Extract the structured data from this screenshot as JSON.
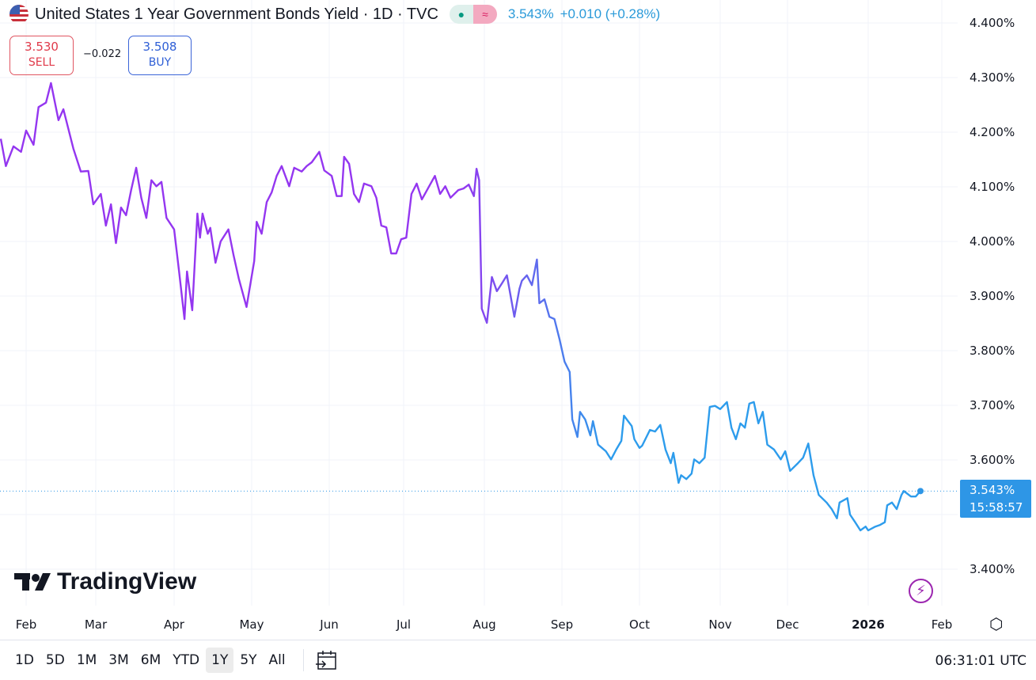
{
  "header": {
    "title": "United States 1 Year Government Bonds Yield · 1D · TVC",
    "status_market": "●",
    "status_delayed": "≈",
    "last": "3.543%",
    "change": "+0.010 (+0.28%)"
  },
  "trade": {
    "sell_price": "3.530",
    "sell_label": "SELL",
    "spread": "−0.022",
    "buy_price": "3.508",
    "buy_label": "BUY"
  },
  "price_tag": {
    "value": "3.543%",
    "countdown": "15:58:57"
  },
  "logo": "TradingView",
  "bottom": {
    "ranges": [
      "1D",
      "5D",
      "1M",
      "3M",
      "6M",
      "YTD",
      "1Y",
      "5Y",
      "All"
    ],
    "selected": "1Y",
    "clock": "06:31:01 UTC"
  },
  "colors": {
    "line_start": "#9436f0",
    "line_end": "#2d9cec",
    "accent": "#2e96e6"
  },
  "icons": [
    "us-flag-icon",
    "market-open-icon",
    "delayed-data-icon",
    "calendar-goto-icon",
    "settings-icon",
    "lightning-icon"
  ],
  "chart_data": {
    "type": "line",
    "title": "United States 1 Year Government Bonds Yield",
    "ylim": [
      3.4,
      4.4
    ],
    "grid": true,
    "y_ticks": [
      "4.400%",
      "4.300%",
      "4.200%",
      "4.100%",
      "4.000%",
      "3.900%",
      "3.800%",
      "3.700%",
      "3.600%",
      "3.400%"
    ],
    "y_tick_values": [
      4.4,
      4.3,
      4.2,
      4.1,
      4.0,
      3.9,
      3.8,
      3.7,
      3.6,
      3.4
    ],
    "x_ticks": [
      "Feb",
      "Mar",
      "Apr",
      "May",
      "Jun",
      "Jul",
      "Aug",
      "Sep",
      "Oct",
      "Nov",
      "Dec",
      "2026",
      "Feb"
    ],
    "x_tick_dates": [
      "2025-02-01",
      "2025-03-01",
      "2025-04-01",
      "2025-05-01",
      "2025-06-01",
      "2025-07-01",
      "2025-08-01",
      "2025-09-01",
      "2025-10-01",
      "2025-11-01",
      "2025-12-01",
      "2026-01-01",
      "2026-02-01"
    ],
    "last_value": 3.543,
    "points": [
      [
        "2025-01-22",
        4.188
      ],
      [
        "2025-01-24",
        4.138
      ],
      [
        "2025-01-27",
        4.174
      ],
      [
        "2025-01-30",
        4.164
      ],
      [
        "2025-02-01",
        4.203
      ],
      [
        "2025-02-04",
        4.177
      ],
      [
        "2025-02-06",
        4.246
      ],
      [
        "2025-02-09",
        4.254
      ],
      [
        "2025-02-11",
        4.29
      ],
      [
        "2025-02-14",
        4.222
      ],
      [
        "2025-02-16",
        4.242
      ],
      [
        "2025-02-20",
        4.17
      ],
      [
        "2025-02-23",
        4.128
      ],
      [
        "2025-02-26",
        4.129
      ],
      [
        "2025-02-28",
        4.068
      ],
      [
        "2025-03-03",
        4.087
      ],
      [
        "2025-03-05",
        4.029
      ],
      [
        "2025-03-07",
        4.068
      ],
      [
        "2025-03-09",
        3.997
      ],
      [
        "2025-03-11",
        4.062
      ],
      [
        "2025-03-13",
        4.048
      ],
      [
        "2025-03-15",
        4.094
      ],
      [
        "2025-03-17",
        4.135
      ],
      [
        "2025-03-19",
        4.08
      ],
      [
        "2025-03-21",
        4.043
      ],
      [
        "2025-03-23",
        4.112
      ],
      [
        "2025-03-25",
        4.101
      ],
      [
        "2025-03-27",
        4.109
      ],
      [
        "2025-03-29",
        4.043
      ],
      [
        "2025-04-01",
        4.022
      ],
      [
        "2025-04-03",
        3.942
      ],
      [
        "2025-04-05",
        3.858
      ],
      [
        "2025-04-06",
        3.945
      ],
      [
        "2025-04-08",
        3.874
      ],
      [
        "2025-04-10",
        4.051
      ],
      [
        "2025-04-11",
        4.007
      ],
      [
        "2025-04-12",
        4.051
      ],
      [
        "2025-04-14",
        4.014
      ],
      [
        "2025-04-15",
        4.025
      ],
      [
        "2025-04-17",
        3.961
      ],
      [
        "2025-04-19",
        4.0
      ],
      [
        "2025-04-22",
        4.022
      ],
      [
        "2025-04-24",
        3.975
      ],
      [
        "2025-04-26",
        3.932
      ],
      [
        "2025-04-29",
        3.88
      ],
      [
        "2025-05-02",
        3.964
      ],
      [
        "2025-05-03",
        4.036
      ],
      [
        "2025-05-05",
        4.014
      ],
      [
        "2025-05-07",
        4.072
      ],
      [
        "2025-05-09",
        4.09
      ],
      [
        "2025-05-11",
        4.12
      ],
      [
        "2025-05-13",
        4.138
      ],
      [
        "2025-05-16",
        4.101
      ],
      [
        "2025-05-18",
        4.135
      ],
      [
        "2025-05-21",
        4.128
      ],
      [
        "2025-05-23",
        4.138
      ],
      [
        "2025-05-25",
        4.145
      ],
      [
        "2025-05-28",
        4.164
      ],
      [
        "2025-05-30",
        4.13
      ],
      [
        "2025-06-02",
        4.12
      ],
      [
        "2025-06-04",
        4.083
      ],
      [
        "2025-06-06",
        4.083
      ],
      [
        "2025-06-07",
        4.155
      ],
      [
        "2025-06-09",
        4.142
      ],
      [
        "2025-06-11",
        4.087
      ],
      [
        "2025-06-13",
        4.072
      ],
      [
        "2025-06-15",
        4.106
      ],
      [
        "2025-06-18",
        4.101
      ],
      [
        "2025-06-20",
        4.08
      ],
      [
        "2025-06-22",
        4.029
      ],
      [
        "2025-06-24",
        4.026
      ],
      [
        "2025-06-26",
        3.978
      ],
      [
        "2025-06-28",
        3.978
      ],
      [
        "2025-06-30",
        4.004
      ],
      [
        "2025-07-02",
        4.007
      ],
      [
        "2025-07-04",
        4.087
      ],
      [
        "2025-07-06",
        4.106
      ],
      [
        "2025-07-08",
        4.077
      ],
      [
        "2025-07-10",
        4.094
      ],
      [
        "2025-07-13",
        4.12
      ],
      [
        "2025-07-15",
        4.087
      ],
      [
        "2025-07-17",
        4.101
      ],
      [
        "2025-07-19",
        4.08
      ],
      [
        "2025-07-22",
        4.094
      ],
      [
        "2025-07-24",
        4.097
      ],
      [
        "2025-07-26",
        4.104
      ],
      [
        "2025-07-28",
        4.083
      ],
      [
        "2025-07-29",
        4.133
      ],
      [
        "2025-07-30",
        4.112
      ],
      [
        "2025-07-31",
        3.877
      ],
      [
        "2025-08-02",
        3.851
      ],
      [
        "2025-08-04",
        3.935
      ],
      [
        "2025-08-06",
        3.909
      ],
      [
        "2025-08-08",
        3.923
      ],
      [
        "2025-08-10",
        3.938
      ],
      [
        "2025-08-11",
        3.913
      ],
      [
        "2025-08-13",
        3.862
      ],
      [
        "2025-08-15",
        3.913
      ],
      [
        "2025-08-16",
        3.928
      ],
      [
        "2025-08-18",
        3.938
      ],
      [
        "2025-08-20",
        3.92
      ],
      [
        "2025-08-22",
        3.967
      ],
      [
        "2025-08-23",
        3.887
      ],
      [
        "2025-08-25",
        3.894
      ],
      [
        "2025-08-27",
        3.862
      ],
      [
        "2025-08-29",
        3.858
      ],
      [
        "2025-08-31",
        3.822
      ],
      [
        "2025-09-02",
        3.78
      ],
      [
        "2025-09-04",
        3.761
      ],
      [
        "2025-09-05",
        3.674
      ],
      [
        "2025-09-07",
        3.642
      ],
      [
        "2025-09-08",
        3.688
      ],
      [
        "2025-09-10",
        3.674
      ],
      [
        "2025-09-12",
        3.645
      ],
      [
        "2025-09-13",
        3.671
      ],
      [
        "2025-09-15",
        3.628
      ],
      [
        "2025-09-18",
        3.616
      ],
      [
        "2025-09-20",
        3.601
      ],
      [
        "2025-09-22",
        3.619
      ],
      [
        "2025-09-24",
        3.635
      ],
      [
        "2025-09-25",
        3.681
      ],
      [
        "2025-09-28",
        3.662
      ],
      [
        "2025-09-29",
        3.638
      ],
      [
        "2025-10-01",
        3.622
      ],
      [
        "2025-10-02",
        3.626
      ],
      [
        "2025-10-05",
        3.655
      ],
      [
        "2025-10-07",
        3.652
      ],
      [
        "2025-10-09",
        3.664
      ],
      [
        "2025-10-11",
        3.619
      ],
      [
        "2025-10-13",
        3.594
      ],
      [
        "2025-10-14",
        3.613
      ],
      [
        "2025-10-16",
        3.558
      ],
      [
        "2025-10-17",
        3.572
      ],
      [
        "2025-10-19",
        3.565
      ],
      [
        "2025-10-21",
        3.575
      ],
      [
        "2025-10-22",
        3.601
      ],
      [
        "2025-10-24",
        3.594
      ],
      [
        "2025-10-26",
        3.604
      ],
      [
        "2025-10-28",
        3.697
      ],
      [
        "2025-10-30",
        3.699
      ],
      [
        "2025-11-01",
        3.693
      ],
      [
        "2025-11-04",
        3.706
      ],
      [
        "2025-11-06",
        3.659
      ],
      [
        "2025-11-08",
        3.638
      ],
      [
        "2025-11-10",
        3.667
      ],
      [
        "2025-11-12",
        3.659
      ],
      [
        "2025-11-14",
        3.703
      ],
      [
        "2025-11-16",
        3.706
      ],
      [
        "2025-11-18",
        3.667
      ],
      [
        "2025-11-20",
        3.688
      ],
      [
        "2025-11-22",
        3.628
      ],
      [
        "2025-11-25",
        3.619
      ],
      [
        "2025-11-28",
        3.601
      ],
      [
        "2025-11-30",
        3.616
      ],
      [
        "2025-12-02",
        3.58
      ],
      [
        "2025-12-05",
        3.594
      ],
      [
        "2025-12-07",
        3.604
      ],
      [
        "2025-12-09",
        3.63
      ],
      [
        "2025-12-11",
        3.572
      ],
      [
        "2025-12-13",
        3.536
      ],
      [
        "2025-12-16",
        3.522
      ],
      [
        "2025-12-18",
        3.51
      ],
      [
        "2025-12-20",
        3.493
      ],
      [
        "2025-12-21",
        3.522
      ],
      [
        "2025-12-24",
        3.53
      ],
      [
        "2025-12-25",
        3.5
      ],
      [
        "2025-12-27",
        3.486
      ],
      [
        "2025-12-29",
        3.471
      ],
      [
        "2025-12-31",
        3.478
      ],
      [
        "2026-01-01",
        3.471
      ],
      [
        "2026-01-04",
        3.478
      ],
      [
        "2026-01-06",
        3.481
      ],
      [
        "2026-01-08",
        3.486
      ],
      [
        "2026-01-09",
        3.517
      ],
      [
        "2026-01-11",
        3.522
      ],
      [
        "2026-01-13",
        3.51
      ],
      [
        "2026-01-15",
        3.536
      ],
      [
        "2026-01-16",
        3.543
      ],
      [
        "2026-01-19",
        3.533
      ],
      [
        "2026-01-21",
        3.533
      ],
      [
        "2026-01-23",
        3.543
      ]
    ]
  }
}
